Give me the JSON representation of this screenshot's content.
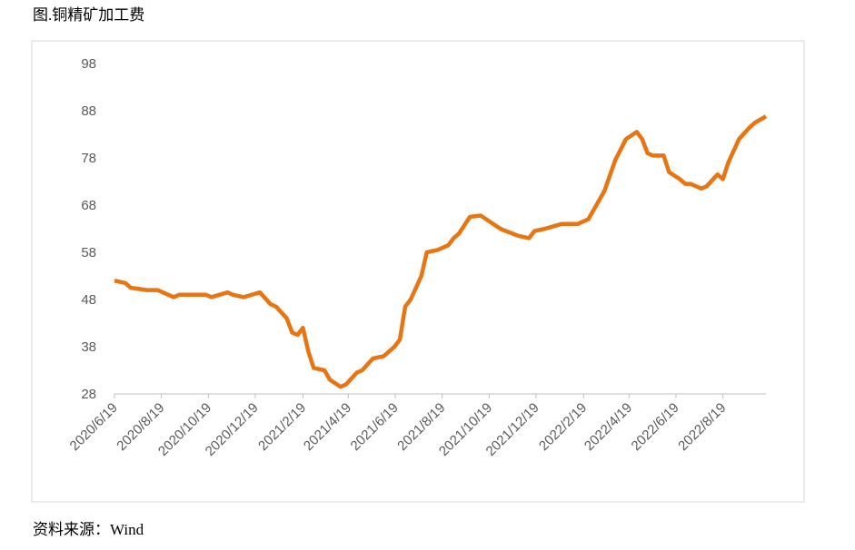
{
  "chart_data": {
    "type": "line",
    "title": "图.铜精矿加工费",
    "source": "资料来源：Wind",
    "x": [
      "2020/6/19",
      "2020/7/3",
      "2020/7/10",
      "2020/7/31",
      "2020/8/14",
      "2020/9/4",
      "2020/9/11",
      "2020/10/16",
      "2020/10/23",
      "2020/11/13",
      "2020/11/20",
      "2020/12/4",
      "2020/12/25",
      "2021/1/8",
      "2021/1/15",
      "2021/1/29",
      "2021/2/5",
      "2021/2/12",
      "2021/2/19",
      "2021/2/26",
      "2021/3/5",
      "2021/3/19",
      "2021/3/26",
      "2021/4/9",
      "2021/4/16",
      "2021/4/30",
      "2021/5/7",
      "2021/5/21",
      "2021/6/4",
      "2021/6/18",
      "2021/6/25",
      "2021/7/2",
      "2021/7/9",
      "2021/7/23",
      "2021/7/30",
      "2021/8/13",
      "2021/8/27",
      "2021/9/3",
      "2021/9/10",
      "2021/9/24",
      "2021/10/8",
      "2021/10/29",
      "2021/11/5",
      "2021/11/26",
      "2021/12/10",
      "2021/12/17",
      "2021/12/31",
      "2022/1/21",
      "2022/2/11",
      "2022/2/25",
      "2022/3/4",
      "2022/3/18",
      "2022/4/1",
      "2022/4/15",
      "2022/4/29",
      "2022/5/6",
      "2022/5/13",
      "2022/5/20",
      "2022/6/3",
      "2022/6/10",
      "2022/6/24",
      "2022/7/1",
      "2022/7/8",
      "2022/7/22",
      "2022/7/29",
      "2022/8/12",
      "2022/8/19",
      "2022/8/26",
      "2022/9/9",
      "2022/9/23",
      "2022/9/30",
      "2022/10/14"
    ],
    "series": [
      {
        "name": "铜精矿加工费",
        "color": "#e87511",
        "values": [
          52,
          51.5,
          50.5,
          50,
          50,
          48.5,
          49,
          49,
          48.5,
          49.5,
          49,
          48.5,
          49.5,
          47,
          46.5,
          44,
          41,
          40.5,
          42,
          37,
          33.5,
          33,
          31,
          29.5,
          30,
          32.5,
          33,
          35.5,
          36,
          38,
          39.5,
          46.5,
          48,
          53,
          58,
          58.5,
          59.5,
          61,
          62,
          65.5,
          65.8,
          63.5,
          62.8,
          61.5,
          61,
          62.5,
          63,
          64,
          64,
          65,
          67,
          71,
          77.5,
          82,
          83.5,
          82,
          79,
          78.5,
          78.5,
          75,
          73.5,
          72.5,
          72.5,
          71.5,
          72,
          74.5,
          73.5,
          77,
          82,
          84.5,
          85.5,
          86.8
        ]
      }
    ],
    "xlim": [
      "2020/6/19",
      "2022/10/14"
    ],
    "xticks": [
      "2020/6/19",
      "2020/8/19",
      "2020/10/19",
      "2020/12/19",
      "2021/2/19",
      "2021/4/19",
      "2021/6/19",
      "2021/8/19",
      "2021/10/19",
      "2021/12/19",
      "2022/2/19",
      "2022/4/19",
      "2022/6/19",
      "2022/8/19"
    ],
    "ylim": [
      28,
      98
    ],
    "yticks": [
      28,
      38,
      48,
      58,
      68,
      78,
      88,
      98
    ],
    "grid": false
  }
}
